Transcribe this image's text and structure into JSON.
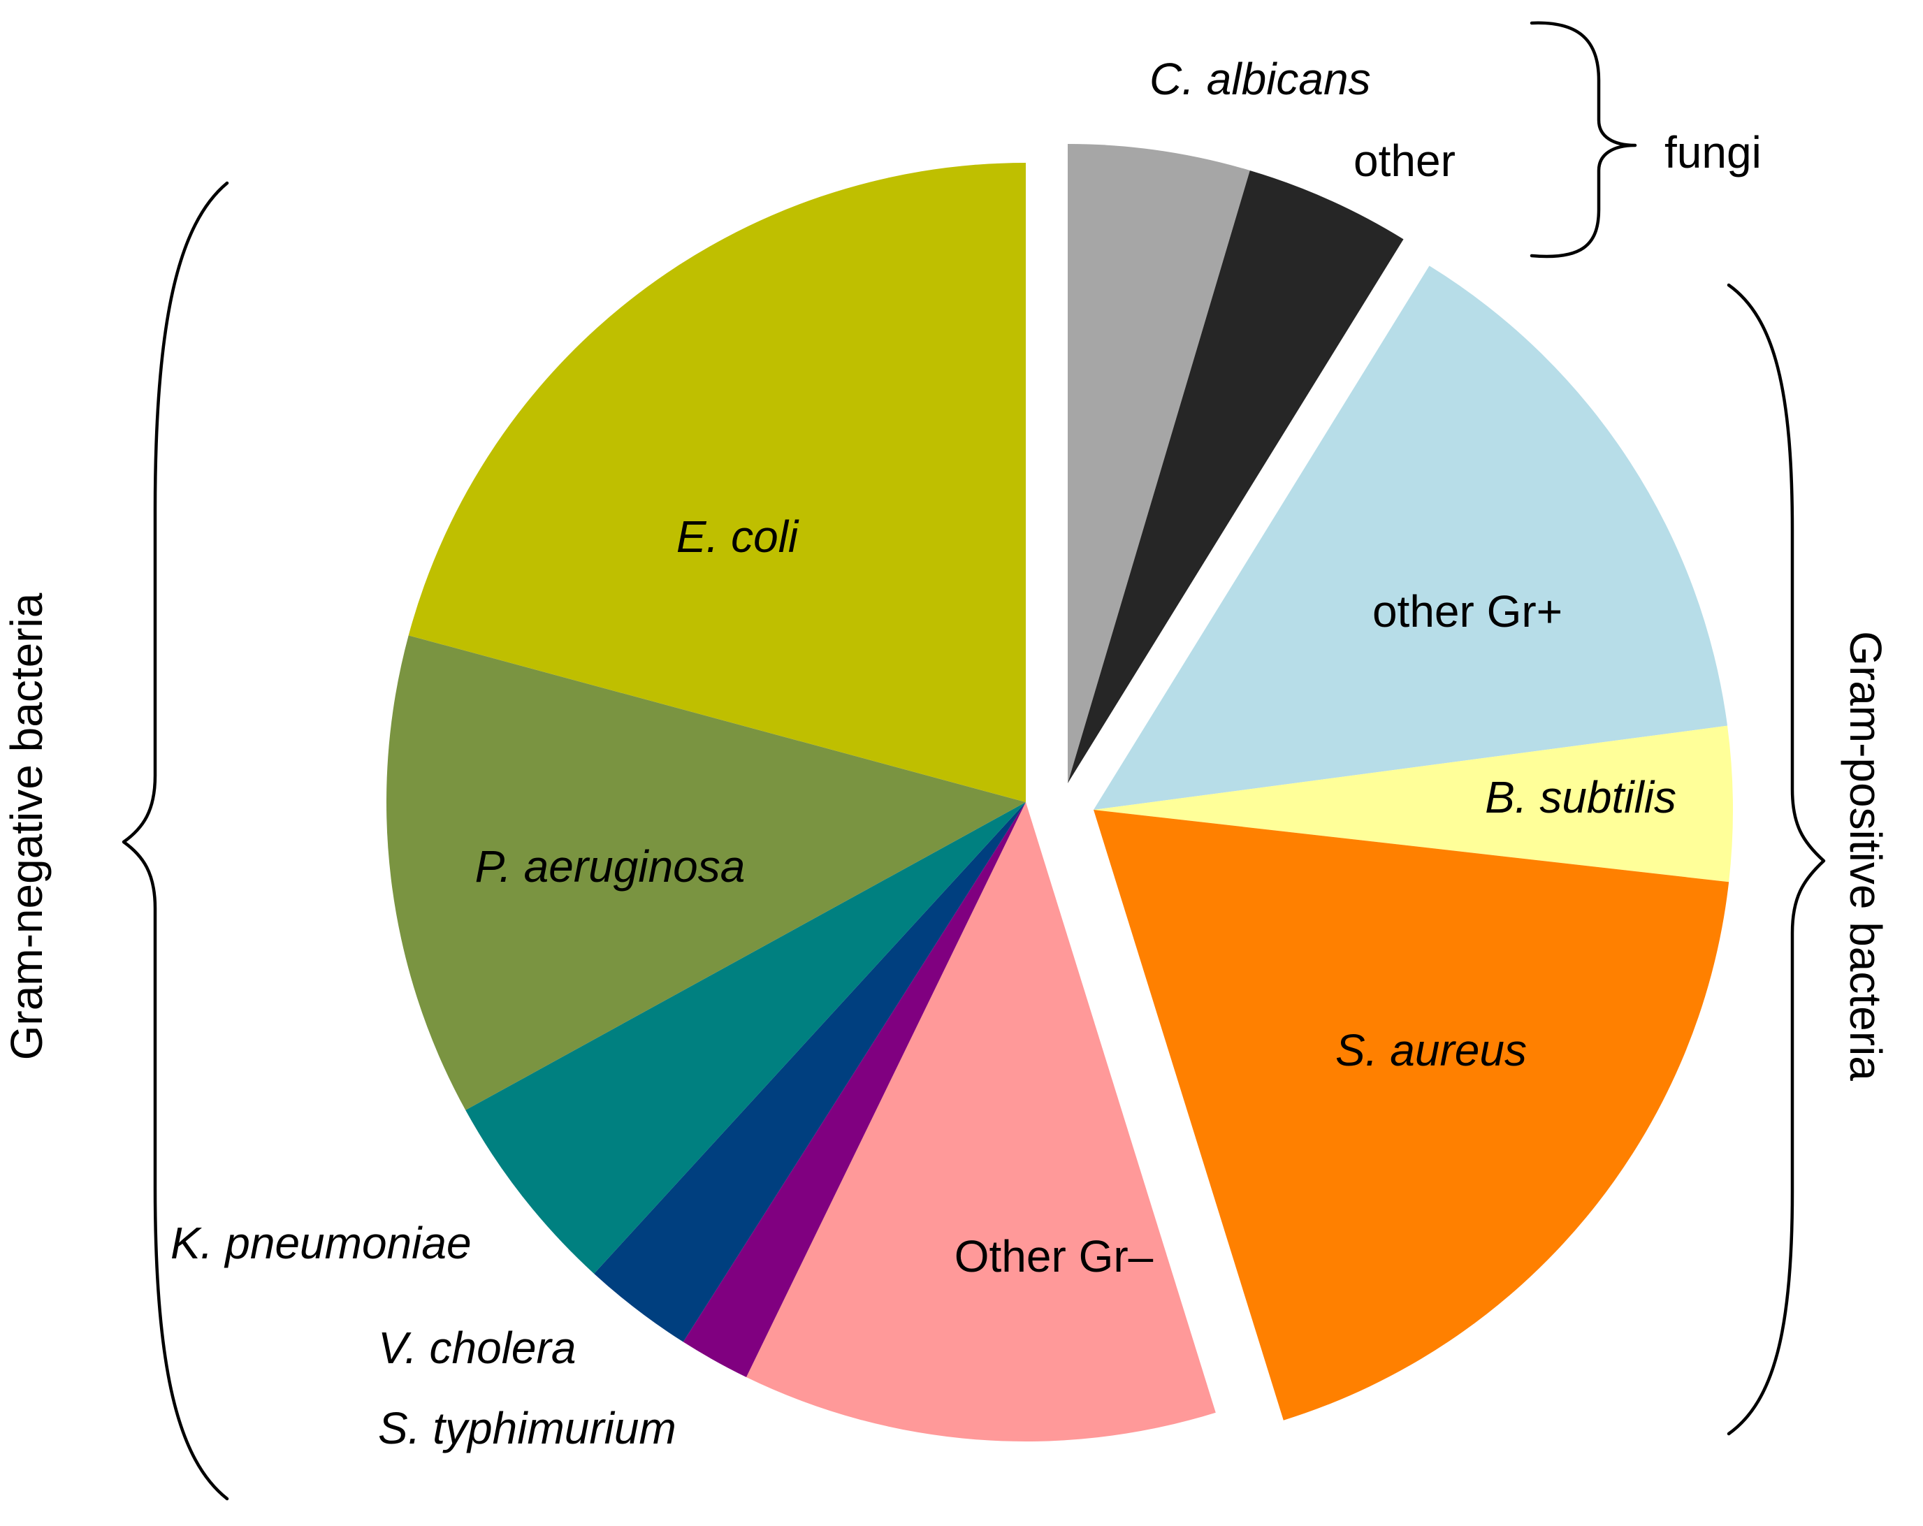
{
  "chart_data": {
    "type": "pie",
    "title": "",
    "start_angle_deg": 0,
    "direction": "clockwise",
    "slices": [
      {
        "label": "C. albicans",
        "value": 4.6,
        "color": "#A6A6A6",
        "italic": true,
        "group": "fungi"
      },
      {
        "label": "other",
        "value": 4.2,
        "color": "#262626",
        "italic": false,
        "group": "fungi"
      },
      {
        "label": "other Gr+",
        "value": 14.1,
        "color": "#B7DDE8",
        "italic": false,
        "group": "gram_positive"
      },
      {
        "label": "B. subtilis",
        "value": 3.9,
        "color": "#FFFF99",
        "italic": true,
        "group": "gram_positive"
      },
      {
        "label": "S. aureus",
        "value": 18.4,
        "color": "#FF8000",
        "italic": true,
        "group": "gram_positive"
      },
      {
        "label": "Other Gr–",
        "value": 12.0,
        "color": "#FF9999",
        "italic": false,
        "group": "gram_negative"
      },
      {
        "label": "S. typhimurium",
        "value": 1.8,
        "color": "#800080",
        "italic": true,
        "group": "gram_negative"
      },
      {
        "label": "V. cholera",
        "value": 2.8,
        "color": "#003F7F",
        "italic": true,
        "group": "gram_negative"
      },
      {
        "label": "K. pneumoniae",
        "value": 5.2,
        "color": "#008080",
        "italic": true,
        "group": "gram_negative"
      },
      {
        "label": "P. aeruginosa",
        "value": 12.2,
        "color": "#7A9441",
        "italic": true,
        "group": "gram_negative"
      },
      {
        "label": "E. coli",
        "value": 20.8,
        "color": "#BFBF00",
        "italic": true,
        "group": "gram_negative"
      }
    ],
    "groups": {
      "fungi": {
        "label": "fungi"
      },
      "gram_positive": {
        "label": "Gram-positive bacteria"
      },
      "gram_negative": {
        "label": "Gram-negative bacteria"
      }
    }
  }
}
